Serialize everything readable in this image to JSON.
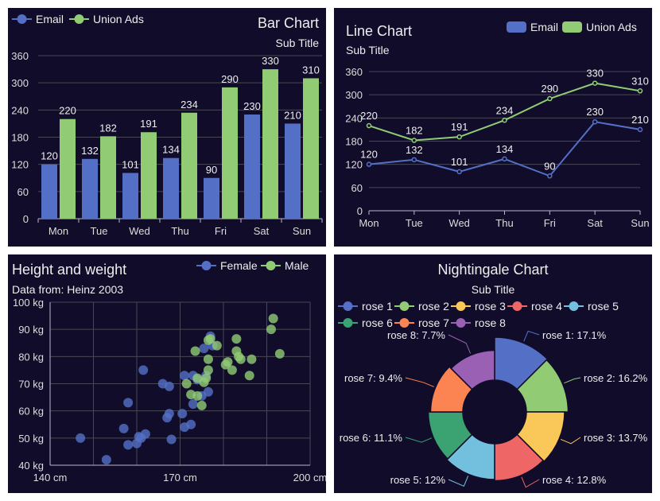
{
  "colors": {
    "background": "#100c2a",
    "blue": "#5470c6",
    "green": "#91cc75",
    "grid": "#484753",
    "axis": "#b9b8ce"
  },
  "chart_data": [
    {
      "type": "bar",
      "title": "Bar Chart",
      "subtitle": "Sub Title",
      "categories": [
        "Mon",
        "Tue",
        "Wed",
        "Thu",
        "Fri",
        "Sat",
        "Sun"
      ],
      "series": [
        {
          "name": "Email",
          "values": [
            120,
            132,
            101,
            134,
            90,
            230,
            210
          ],
          "color": "#5470c6"
        },
        {
          "name": "Union Ads",
          "values": [
            220,
            182,
            191,
            234,
            290,
            330,
            310
          ],
          "color": "#91cc75"
        }
      ],
      "ylim": [
        0,
        360
      ],
      "yticks": [
        "0",
        "60",
        "120",
        "180",
        "240",
        "300",
        "360"
      ],
      "legend": "top-left",
      "grid": true
    },
    {
      "type": "line",
      "title": "Line Chart",
      "subtitle": "Sub Title",
      "categories": [
        "Mon",
        "Tue",
        "Wed",
        "Thu",
        "Fri",
        "Sat",
        "Sun"
      ],
      "series": [
        {
          "name": "Email",
          "values": [
            120,
            132,
            101,
            134,
            90,
            230,
            210
          ],
          "color": "#5470c6"
        },
        {
          "name": "Union Ads",
          "values": [
            220,
            182,
            191,
            234,
            290,
            330,
            310
          ],
          "color": "#91cc75"
        }
      ],
      "ylim": [
        0,
        360
      ],
      "yticks": [
        "0",
        "60",
        "120",
        "180",
        "240",
        "300",
        "360"
      ],
      "legend": "top-right",
      "grid": true
    },
    {
      "type": "scatter",
      "title": "Height and weight",
      "subtitle": "Data from: Heinz 2003",
      "xlim": [
        140,
        200
      ],
      "ylim": [
        40,
        100
      ],
      "xticks": [
        "140 cm",
        "170 cm",
        "200 cm"
      ],
      "yticks": [
        "40 kg",
        "50 kg",
        "60 kg",
        "70 kg",
        "80 kg",
        "90 kg",
        "100 kg"
      ],
      "series": [
        {
          "name": "Female",
          "color": "#5470c6",
          "points": [
            [
              147,
              50
            ],
            [
              153,
              42
            ],
            [
              157,
              53.5
            ],
            [
              158,
              63
            ],
            [
              158,
              47.5
            ],
            [
              160,
              48
            ],
            [
              160.5,
              50.5
            ],
            [
              161,
              50
            ],
            [
              161.5,
              75
            ],
            [
              162,
              51.5
            ],
            [
              166,
              70
            ],
            [
              167,
              57.5
            ],
            [
              167.5,
              59
            ],
            [
              167.5,
              69
            ],
            [
              168,
              49.5
            ],
            [
              170.5,
              59
            ],
            [
              171,
              73
            ],
            [
              171,
              54
            ],
            [
              172.5,
              55
            ],
            [
              173,
              62.5
            ],
            [
              173,
              73
            ],
            [
              174,
              71.5
            ],
            [
              175,
              65.5
            ],
            [
              175.5,
              83
            ],
            [
              176,
              73
            ],
            [
              176.5,
              67
            ],
            [
              177,
              87.5
            ],
            [
              177.5,
              84
            ]
          ]
        },
        {
          "name": "Male",
          "color": "#91cc75",
          "points": [
            [
              171.5,
              70
            ],
            [
              172.5,
              66
            ],
            [
              173.5,
              82
            ],
            [
              174,
              72
            ],
            [
              174,
              65.5
            ],
            [
              175,
              62
            ],
            [
              175.5,
              70.5
            ],
            [
              176,
              72
            ],
            [
              176.5,
              86
            ],
            [
              176.5,
              75
            ],
            [
              176.5,
              79
            ],
            [
              177,
              86.5
            ],
            [
              178.5,
              84
            ],
            [
              180.5,
              77
            ],
            [
              181,
              78
            ],
            [
              182,
              75
            ],
            [
              183,
              82
            ],
            [
              183,
              86.5
            ],
            [
              183.5,
              80
            ],
            [
              184,
              79
            ],
            [
              186,
              73
            ],
            [
              186.5,
              79
            ],
            [
              191,
              90
            ],
            [
              191.5,
              94
            ],
            [
              193,
              81
            ]
          ]
        }
      ],
      "legend": "top-right",
      "grid": true
    },
    {
      "type": "pie",
      "rose": true,
      "title": "Nightingale Chart",
      "subtitle": "Sub Title",
      "slices": [
        {
          "name": "rose 1",
          "value": 40,
          "label": "rose 1: 17.1%",
          "color": "#5470c6"
        },
        {
          "name": "rose 2",
          "value": 38,
          "label": "rose 2: 16.2%",
          "color": "#91cc75"
        },
        {
          "name": "rose 3",
          "value": 32,
          "label": "rose 3: 13.7%",
          "color": "#fac858"
        },
        {
          "name": "rose 4",
          "value": 30,
          "label": "rose 4: 12.8%",
          "color": "#ee6666"
        },
        {
          "name": "rose 5",
          "value": 28,
          "label": "rose 5: 12%",
          "color": "#73c0de"
        },
        {
          "name": "rose 6",
          "value": 26,
          "label": "rose 6: 11.1%",
          "color": "#3ba272"
        },
        {
          "name": "rose 7",
          "value": 22,
          "label": "rose 7: 9.4%",
          "color": "#fc8452"
        },
        {
          "name": "rose 8",
          "value": 18,
          "label": "rose 8: 7.7%",
          "color": "#9a60b4"
        }
      ],
      "legend": "top"
    }
  ]
}
